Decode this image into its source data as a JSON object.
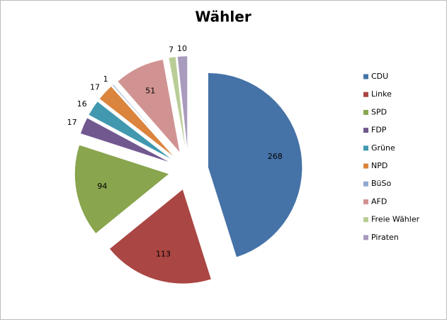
{
  "chart_data": {
    "type": "pie",
    "title": "Wähler",
    "categories": [
      "CDU",
      "Linke",
      "SPD",
      "FDP",
      "Grüne",
      "NPD",
      "BüSo",
      "AFD",
      "Freie Wähler",
      "Piraten"
    ],
    "values": [
      268,
      113,
      94,
      17,
      16,
      17,
      1,
      51,
      7,
      10
    ],
    "colors": [
      "#4572A7",
      "#AA4643",
      "#89A54E",
      "#71588F",
      "#4198AF",
      "#DB843D",
      "#93A9CF",
      "#D19392",
      "#B9CD96",
      "#A99BBD"
    ],
    "legend": "right"
  }
}
